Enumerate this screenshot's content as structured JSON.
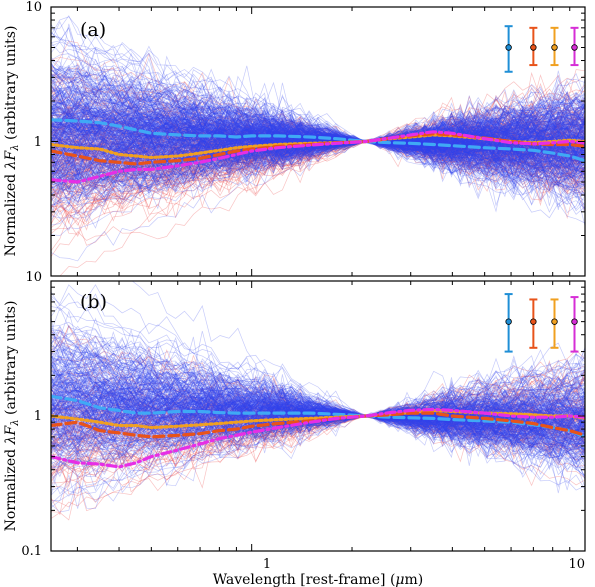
{
  "chart_data": [
    {
      "type": "line",
      "panel_label": "(a)",
      "xscale": "log",
      "yscale": "log",
      "xlim": [
        0.25,
        10
      ],
      "ylim": [
        0.1,
        10
      ],
      "ylabel": "Normalized λF_λ (arbitrary units)",
      "y_tick_labels": [
        "10",
        "1",
        "10"
      ],
      "x_tick_labels": [],
      "pivot": {
        "x": 2.2,
        "y": 1
      },
      "background_lines": {
        "blue_count": 400,
        "red_count": 130,
        "blue_color": "#3344ee",
        "red_color": "#ee5555"
      },
      "median_series": [
        {
          "x": [
            0.25,
            0.3,
            0.35,
            0.4,
            0.45,
            0.5,
            0.6,
            0.7,
            0.8,
            0.9,
            1.0,
            1.2,
            1.5,
            1.8,
            2.2,
            2.6,
            3.0,
            3.5,
            4.0,
            5.0,
            6.0,
            7.0,
            8.0,
            9.0,
            10.0
          ],
          "y": [
            1.45,
            1.42,
            1.38,
            1.3,
            1.22,
            1.15,
            1.12,
            1.1,
            1.1,
            1.08,
            1.1,
            1.1,
            1.08,
            1.05,
            1.0,
            0.98,
            0.97,
            0.95,
            0.93,
            0.9,
            0.88,
            0.86,
            0.82,
            0.78,
            0.72
          ],
          "color": "#3fa9f5",
          "style": "dashed"
        },
        {
          "x": [
            0.25,
            0.3,
            0.35,
            0.4,
            0.45,
            0.5,
            0.6,
            0.7,
            0.8,
            0.9,
            1.0,
            1.2,
            1.5,
            1.8,
            2.2,
            2.6,
            3.0,
            3.5,
            4.0,
            5.0,
            6.0,
            7.0,
            8.0,
            9.0,
            10.0
          ],
          "y": [
            0.95,
            0.9,
            0.88,
            0.8,
            0.78,
            0.76,
            0.78,
            0.82,
            0.86,
            0.9,
            0.92,
            0.95,
            0.97,
            0.98,
            1.0,
            1.05,
            1.08,
            1.12,
            1.1,
            1.05,
            1.0,
            0.98,
            1.0,
            1.02,
            1.0
          ],
          "color": "#f0a020",
          "style": "dotted"
        },
        {
          "x": [
            0.25,
            0.3,
            0.35,
            0.4,
            0.45,
            0.5,
            0.6,
            0.7,
            0.8,
            0.9,
            1.0,
            1.2,
            1.5,
            1.8,
            2.2,
            2.6,
            3.0,
            3.5,
            4.0,
            5.0,
            6.0,
            7.0,
            8.0,
            9.0,
            10.0
          ],
          "y": [
            0.85,
            0.78,
            0.72,
            0.7,
            0.68,
            0.7,
            0.72,
            0.75,
            0.8,
            0.85,
            0.88,
            0.92,
            0.95,
            0.98,
            1.0,
            1.06,
            1.1,
            1.14,
            1.12,
            1.06,
            1.0,
            0.96,
            0.95,
            0.95,
            0.92
          ],
          "color": "#e8531a",
          "style": "dashed"
        },
        {
          "x": [
            0.25,
            0.3,
            0.35,
            0.4,
            0.45,
            0.5,
            0.6,
            0.7,
            0.8,
            0.9,
            1.0,
            1.2,
            1.5,
            1.8,
            2.2,
            2.6,
            3.0,
            3.5,
            4.0,
            5.0,
            6.0,
            7.0,
            8.0,
            9.0,
            10.0
          ],
          "y": [
            0.52,
            0.5,
            0.55,
            0.6,
            0.62,
            0.62,
            0.66,
            0.7,
            0.75,
            0.8,
            0.85,
            0.9,
            0.94,
            0.97,
            1.0,
            1.06,
            1.12,
            1.18,
            1.15,
            1.05,
            0.98,
            0.96,
            0.98,
            1.0,
            0.98
          ],
          "color": "#e62ee6",
          "style": "dashdot"
        }
      ],
      "error_bars": [
        {
          "x": 5.9,
          "y": 5.0,
          "ylow": 3.3,
          "yhigh": 7.2,
          "color": "#1f8fd6"
        },
        {
          "x": 7.0,
          "y": 5.0,
          "ylow": 3.7,
          "yhigh": 7.0,
          "color": "#e8531a"
        },
        {
          "x": 8.1,
          "y": 5.0,
          "ylow": 3.7,
          "yhigh": 7.0,
          "color": "#f0a020"
        },
        {
          "x": 9.3,
          "y": 5.0,
          "ylow": 3.7,
          "yhigh": 7.0,
          "color": "#d62ed6"
        }
      ]
    },
    {
      "type": "line",
      "panel_label": "(b)",
      "xscale": "log",
      "yscale": "log",
      "xlim": [
        0.25,
        10
      ],
      "ylim": [
        0.1,
        10
      ],
      "xlabel": "Wavelength [rest-frame] (μm)",
      "ylabel": "Normalized λF_λ (arbitrary units)",
      "y_tick_labels": [
        "1",
        "0.1"
      ],
      "x_tick_labels": [
        "1",
        "10"
      ],
      "pivot": {
        "x": 2.2,
        "y": 1
      },
      "background_lines": {
        "blue_count": 300,
        "red_count": 80,
        "blue_color": "#3344ee",
        "red_color": "#ee5555"
      },
      "median_series": [
        {
          "x": [
            0.25,
            0.3,
            0.35,
            0.4,
            0.45,
            0.5,
            0.6,
            0.7,
            0.8,
            0.9,
            1.0,
            1.2,
            1.5,
            1.8,
            2.2,
            2.6,
            3.0,
            3.5,
            4.0,
            5.0,
            6.0,
            7.0,
            8.0,
            9.0,
            10.0
          ],
          "y": [
            1.4,
            1.3,
            1.15,
            1.1,
            1.05,
            1.05,
            1.08,
            1.08,
            1.06,
            1.05,
            1.05,
            1.05,
            1.05,
            1.03,
            1.0,
            0.98,
            0.97,
            0.96,
            0.94,
            0.92,
            0.9,
            0.86,
            0.82,
            0.78,
            0.7
          ],
          "color": "#3fa9f5",
          "style": "dashed"
        },
        {
          "x": [
            0.25,
            0.3,
            0.35,
            0.4,
            0.45,
            0.5,
            0.6,
            0.7,
            0.8,
            0.9,
            1.0,
            1.2,
            1.5,
            1.8,
            2.2,
            2.6,
            3.0,
            3.5,
            4.0,
            5.0,
            6.0,
            7.0,
            8.0,
            9.0,
            10.0
          ],
          "y": [
            1.0,
            0.95,
            0.9,
            0.85,
            0.85,
            0.82,
            0.84,
            0.86,
            0.88,
            0.9,
            0.92,
            0.94,
            0.96,
            0.98,
            1.0,
            1.03,
            1.06,
            1.1,
            1.08,
            1.05,
            1.04,
            1.02,
            1.0,
            1.0,
            0.96
          ],
          "color": "#f0a020",
          "style": "dotted"
        },
        {
          "x": [
            0.25,
            0.3,
            0.35,
            0.4,
            0.45,
            0.5,
            0.6,
            0.7,
            0.8,
            0.9,
            1.0,
            1.2,
            1.5,
            1.8,
            2.2,
            2.6,
            3.0,
            3.5,
            4.0,
            5.0,
            6.0,
            7.0,
            8.0,
            9.0,
            10.0
          ],
          "y": [
            0.85,
            0.9,
            0.78,
            0.75,
            0.72,
            0.7,
            0.72,
            0.74,
            0.78,
            0.8,
            0.84,
            0.88,
            0.92,
            0.96,
            1.0,
            1.02,
            1.05,
            1.05,
            1.0,
            0.96,
            0.92,
            0.88,
            0.82,
            0.78,
            0.72
          ],
          "color": "#e8531a",
          "style": "dashed"
        },
        {
          "x": [
            0.25,
            0.3,
            0.35,
            0.4,
            0.45,
            0.5,
            0.6,
            0.7,
            0.8,
            0.9,
            1.0,
            1.2,
            1.5,
            1.8,
            2.2,
            2.6,
            3.0,
            3.5,
            4.0,
            5.0,
            6.0,
            7.0,
            8.0,
            9.0,
            10.0
          ],
          "y": [
            0.5,
            0.45,
            0.44,
            0.42,
            0.45,
            0.5,
            0.56,
            0.62,
            0.68,
            0.72,
            0.76,
            0.82,
            0.9,
            0.96,
            1.0,
            1.06,
            1.1,
            1.12,
            1.1,
            1.05,
            1.0,
            0.98,
            0.98,
            1.0,
            0.98
          ],
          "color": "#e62ee6",
          "style": "dashdot"
        }
      ],
      "error_bars": [
        {
          "x": 5.9,
          "y": 5.0,
          "ylow": 3.0,
          "yhigh": 8.0,
          "color": "#1f8fd6"
        },
        {
          "x": 7.0,
          "y": 5.0,
          "ylow": 3.2,
          "yhigh": 7.3,
          "color": "#e8531a"
        },
        {
          "x": 8.1,
          "y": 5.0,
          "ylow": 3.2,
          "yhigh": 7.3,
          "color": "#f0a020"
        },
        {
          "x": 9.3,
          "y": 5.0,
          "ylow": 3.0,
          "yhigh": 7.6,
          "color": "#d62ed6"
        }
      ]
    }
  ]
}
